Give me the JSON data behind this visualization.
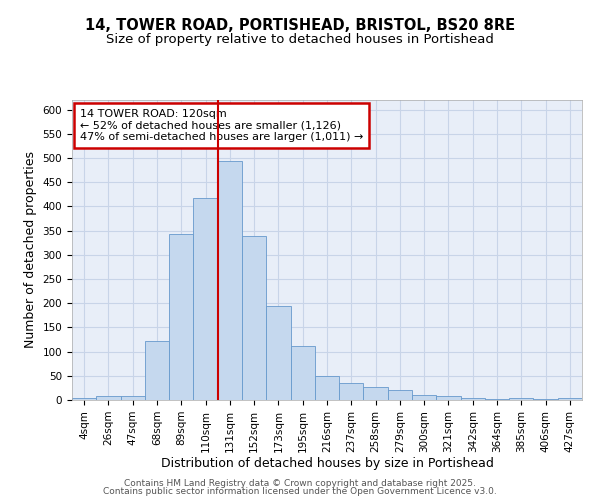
{
  "title_line1": "14, TOWER ROAD, PORTISHEAD, BRISTOL, BS20 8RE",
  "title_line2": "Size of property relative to detached houses in Portishead",
  "xlabel": "Distribution of detached houses by size in Portishead",
  "ylabel": "Number of detached properties",
  "categories": [
    "4sqm",
    "26sqm",
    "47sqm",
    "68sqm",
    "89sqm",
    "110sqm",
    "131sqm",
    "152sqm",
    "173sqm",
    "195sqm",
    "216sqm",
    "237sqm",
    "258sqm",
    "279sqm",
    "300sqm",
    "321sqm",
    "342sqm",
    "364sqm",
    "385sqm",
    "406sqm",
    "427sqm"
  ],
  "values": [
    5,
    8,
    8,
    122,
    343,
    418,
    493,
    338,
    195,
    112,
    50,
    35,
    27,
    20,
    10,
    8,
    4,
    3,
    4,
    3,
    4
  ],
  "bar_color": "#c5d8ee",
  "bar_edge_color": "#6699cc",
  "annotation_line1": "14 TOWER ROAD: 120sqm",
  "annotation_line2": "← 52% of detached houses are smaller (1,126)",
  "annotation_line3": "47% of semi-detached houses are larger (1,011) →",
  "annotation_box_color": "#ffffff",
  "annotation_box_edge": "#cc0000",
  "red_line_color": "#cc0000",
  "ylim": [
    0,
    620
  ],
  "yticks": [
    0,
    50,
    100,
    150,
    200,
    250,
    300,
    350,
    400,
    450,
    500,
    550,
    600
  ],
  "footer_line1": "Contains HM Land Registry data © Crown copyright and database right 2025.",
  "footer_line2": "Contains public sector information licensed under the Open Government Licence v3.0.",
  "bg_color": "#ffffff",
  "plot_bg_color": "#e8eef8",
  "grid_color": "#c8d4e8",
  "title_fontsize": 10.5,
  "subtitle_fontsize": 9.5,
  "axis_label_fontsize": 9,
  "tick_fontsize": 7.5,
  "footer_fontsize": 6.5,
  "annotation_fontsize": 8
}
